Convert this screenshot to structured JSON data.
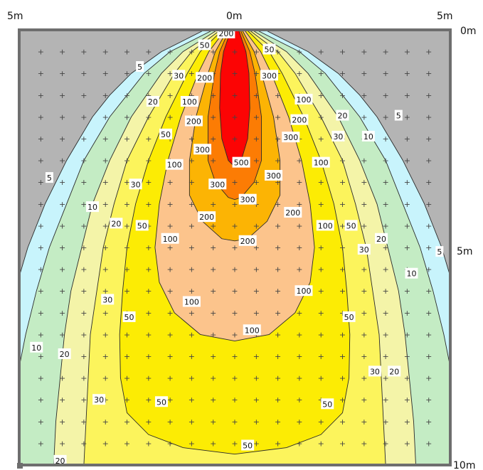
{
  "chart_data": {
    "type": "heatmap",
    "title": "",
    "xlabel": "",
    "ylabel": "",
    "x_range": [
      -5,
      5
    ],
    "y_range": [
      0,
      10
    ],
    "axis_labels": {
      "top_left": "5m",
      "top_center": "0m",
      "top_right": "5m",
      "right_top": "0m",
      "right_middle": "5m",
      "right_bottom": "10m"
    },
    "background_color": "#b4b4b4",
    "grid_marker": "+",
    "contour_levels": [
      {
        "level": 5,
        "color": "#c8f4fc"
      },
      {
        "level": 10,
        "color": "#c4ecc4"
      },
      {
        "level": 20,
        "color": "#f4f4a8"
      },
      {
        "level": 30,
        "color": "#fcf45c"
      },
      {
        "level": 50,
        "color": "#fcec04"
      },
      {
        "level": 100,
        "color": "#fcc48c"
      },
      {
        "level": 200,
        "color": "#fcb404"
      },
      {
        "level": 300,
        "color": "#fc7c04"
      },
      {
        "level": 500,
        "color": "#fc0404"
      }
    ],
    "contour_labels": [
      {
        "text": "200",
        "x": -0.2,
        "y": 0.08
      },
      {
        "text": "50",
        "x": -0.7,
        "y": 0.35
      },
      {
        "text": "50",
        "x": 0.8,
        "y": 0.45
      },
      {
        "text": "5",
        "x": -2.2,
        "y": 0.85
      },
      {
        "text": "30",
        "x": -1.3,
        "y": 1.05
      },
      {
        "text": "200",
        "x": -0.7,
        "y": 1.1
      },
      {
        "text": "300",
        "x": 0.8,
        "y": 1.05
      },
      {
        "text": "20",
        "x": -1.9,
        "y": 1.65
      },
      {
        "text": "100",
        "x": -1.05,
        "y": 1.65
      },
      {
        "text": "100",
        "x": 1.6,
        "y": 1.6
      },
      {
        "text": "200",
        "x": 1.5,
        "y": 2.07
      },
      {
        "text": "200",
        "x": -0.95,
        "y": 2.1
      },
      {
        "text": "20",
        "x": 2.5,
        "y": 1.97
      },
      {
        "text": "5",
        "x": 3.8,
        "y": 1.97
      },
      {
        "text": "50",
        "x": -1.6,
        "y": 2.4
      },
      {
        "text": "300",
        "x": 1.3,
        "y": 2.47
      },
      {
        "text": "30",
        "x": 2.4,
        "y": 2.45
      },
      {
        "text": "10",
        "x": 3.1,
        "y": 2.45
      },
      {
        "text": "300",
        "x": -0.75,
        "y": 2.75
      },
      {
        "text": "500",
        "x": 0.15,
        "y": 3.05
      },
      {
        "text": "100",
        "x": -1.4,
        "y": 3.1
      },
      {
        "text": "100",
        "x": 2.0,
        "y": 3.05
      },
      {
        "text": "300",
        "x": 0.9,
        "y": 3.35
      },
      {
        "text": "30",
        "x": -2.3,
        "y": 3.55
      },
      {
        "text": "300",
        "x": -0.4,
        "y": 3.55
      },
      {
        "text": "5",
        "x": -4.3,
        "y": 3.4
      },
      {
        "text": "300",
        "x": 0.3,
        "y": 3.9
      },
      {
        "text": "10",
        "x": -3.3,
        "y": 4.07
      },
      {
        "text": "200",
        "x": 1.35,
        "y": 4.2
      },
      {
        "text": "200",
        "x": -0.65,
        "y": 4.3
      },
      {
        "text": "20",
        "x": -2.75,
        "y": 4.45
      },
      {
        "text": "50",
        "x": -2.15,
        "y": 4.5
      },
      {
        "text": "100",
        "x": 2.1,
        "y": 4.5
      },
      {
        "text": "50",
        "x": 2.7,
        "y": 4.5
      },
      {
        "text": "100",
        "x": -1.5,
        "y": 4.8
      },
      {
        "text": "200",
        "x": 0.3,
        "y": 4.85
      },
      {
        "text": "20",
        "x": 3.4,
        "y": 4.8
      },
      {
        "text": "30",
        "x": 3.0,
        "y": 5.05
      },
      {
        "text": "5",
        "x": 4.75,
        "y": 5.1
      },
      {
        "text": "10",
        "x": 4.1,
        "y": 5.6
      },
      {
        "text": "100",
        "x": 1.6,
        "y": 6.0
      },
      {
        "text": "100",
        "x": -1.0,
        "y": 6.25
      },
      {
        "text": "30",
        "x": -2.95,
        "y": 6.2
      },
      {
        "text": "50",
        "x": -2.45,
        "y": 6.6
      },
      {
        "text": "50",
        "x": 2.65,
        "y": 6.6
      },
      {
        "text": "100",
        "x": 0.4,
        "y": 6.9
      },
      {
        "text": "10",
        "x": -4.6,
        "y": 7.3
      },
      {
        "text": "20",
        "x": -3.95,
        "y": 7.45
      },
      {
        "text": "30",
        "x": 3.25,
        "y": 7.85
      },
      {
        "text": "20",
        "x": 3.7,
        "y": 7.85
      },
      {
        "text": "30",
        "x": -3.15,
        "y": 8.5
      },
      {
        "text": "50",
        "x": -1.7,
        "y": 8.55
      },
      {
        "text": "50",
        "x": 2.15,
        "y": 8.6
      },
      {
        "text": "50",
        "x": 0.3,
        "y": 9.55
      },
      {
        "text": "20",
        "x": -4.05,
        "y": 9.9
      }
    ]
  }
}
